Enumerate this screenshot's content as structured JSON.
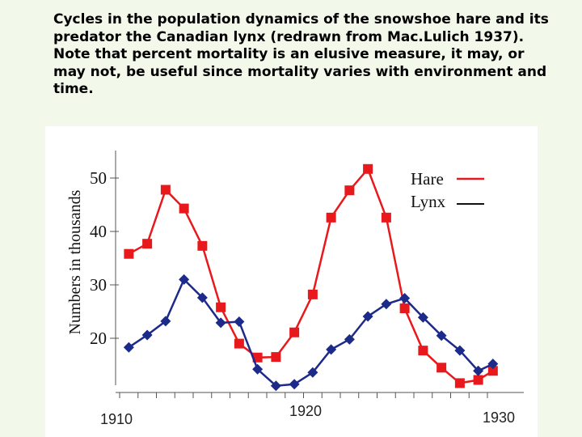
{
  "caption": "Cycles in the population dynamics of the snowshoe hare and its predator the Canadian lynx (redrawn from Mac.Lulich 1937). Note that percent mortality is an elusive measure, it may, or may not, be useful since mortality varies with environment and time.",
  "colors": {
    "background": "#f2f8ea",
    "panel": "#ffffff",
    "hare": "#e8191c",
    "lynx": "#1c2a8a"
  },
  "chart_data": {
    "type": "line",
    "title": "",
    "xlabel": "",
    "ylabel": "Numbers in thousands",
    "xlim": [
      1910,
      1930
    ],
    "ylim": [
      15,
      50
    ],
    "x_tick_labels": [
      "1910",
      "1920",
      "1930"
    ],
    "y_tick_labels": [
      "50",
      "40",
      "30",
      "20"
    ],
    "y_ticks": [
      50,
      40,
      30,
      20
    ],
    "legend_position": "top-right",
    "grid": false,
    "series": [
      {
        "name": "Hare",
        "color": "#e8191c",
        "marker": "square",
        "x": [
          1910.5,
          1911.5,
          1912.5,
          1913.5,
          1914.5,
          1915.5,
          1916.5,
          1917.5,
          1918.5,
          1919.5,
          1920.5,
          1921.5,
          1922.5,
          1923.5,
          1924.5,
          1925.5,
          1926.5,
          1927.5,
          1928.5,
          1929.5,
          1930.3
        ],
        "values": [
          35.8,
          37.7,
          47.8,
          44.3,
          37.3,
          25.8,
          19,
          16.4,
          16.5,
          21.1,
          28.2,
          42.6,
          47.7,
          51.7,
          42.6,
          25.6,
          17.7,
          14.5,
          11.6,
          12.2,
          13.9
        ]
      },
      {
        "name": "Lynx",
        "color": "#1c2a8a",
        "marker": "diamond",
        "x": [
          1910.5,
          1911.5,
          1912.5,
          1913.5,
          1914.5,
          1915.5,
          1916.5,
          1917.5,
          1918.5,
          1919.5,
          1920.5,
          1921.5,
          1922.5,
          1923.5,
          1924.5,
          1925.5,
          1926.5,
          1927.5,
          1928.5,
          1929.5,
          1930.3
        ],
        "values": [
          18.3,
          20.6,
          23.2,
          31,
          27.6,
          22.9,
          23.1,
          14.2,
          11.1,
          11.4,
          13.6,
          17.9,
          19.8,
          24.1,
          26.4,
          27.5,
          23.9,
          20.5,
          17.7,
          13.9,
          15.2
        ]
      }
    ]
  }
}
